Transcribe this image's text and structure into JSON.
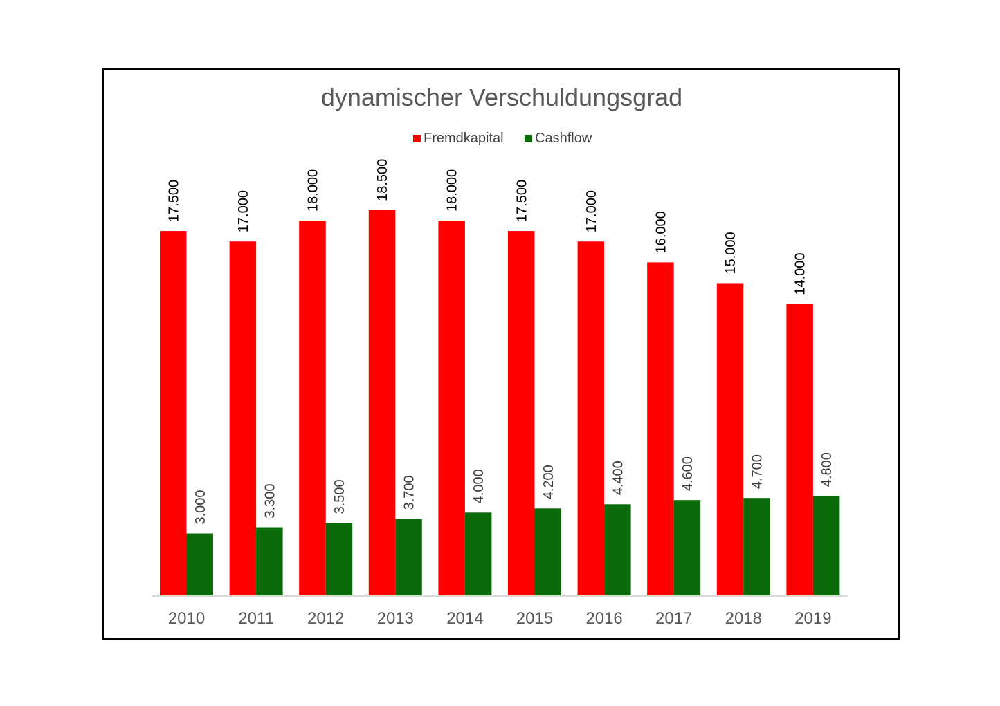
{
  "chart_data": {
    "type": "bar",
    "title": "dynamischer Verschuldungsgrad",
    "categories": [
      "2010",
      "2011",
      "2012",
      "2013",
      "2014",
      "2015",
      "2016",
      "2017",
      "2018",
      "2019"
    ],
    "series": [
      {
        "name": "Fremdkapital",
        "color": "#ff0000",
        "values": [
          17500,
          17000,
          18000,
          18500,
          18000,
          17500,
          17000,
          16000,
          15000,
          14000
        ],
        "labels": [
          "17.500",
          "17.000",
          "18.000",
          "18.500",
          "18.000",
          "17.500",
          "17.000",
          "16.000",
          "15.000",
          "14.000"
        ]
      },
      {
        "name": "Cashflow",
        "color": "#0b6b0b",
        "values": [
          3000,
          3300,
          3500,
          3700,
          4000,
          4200,
          4400,
          4600,
          4700,
          4800
        ],
        "labels": [
          "3.000",
          "3.300",
          "3.500",
          "3.700",
          "4.000",
          "4.200",
          "4.400",
          "4.600",
          "4.700",
          "4.800"
        ]
      }
    ],
    "ylim": [
      0,
      20000
    ],
    "legend": "top-center",
    "grid": false,
    "data_labels": "rotated-vertical"
  }
}
